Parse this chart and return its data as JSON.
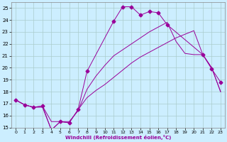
{
  "xlabel": "Windchill (Refroidissement éolien,°C)",
  "xlim": [
    -0.5,
    23.5
  ],
  "ylim": [
    15,
    25.5
  ],
  "yticks": [
    15,
    16,
    17,
    18,
    19,
    20,
    21,
    22,
    23,
    24,
    25
  ],
  "xticks": [
    0,
    1,
    2,
    3,
    4,
    5,
    6,
    7,
    8,
    9,
    10,
    11,
    12,
    13,
    14,
    15,
    16,
    17,
    18,
    19,
    20,
    21,
    22,
    23
  ],
  "background_color": "#cceeff",
  "grid_color": "#aacccc",
  "line_color": "#990099",
  "line1_x": [
    0,
    1,
    2,
    3,
    4,
    5,
    6,
    7,
    8,
    11,
    12,
    13,
    14,
    15,
    16,
    17,
    21,
    22,
    23
  ],
  "line1_y": [
    17.3,
    16.9,
    16.7,
    16.8,
    14.8,
    15.5,
    15.4,
    16.5,
    19.7,
    23.9,
    25.1,
    25.1,
    24.4,
    24.7,
    24.6,
    23.6,
    21.1,
    19.9,
    18.8
  ],
  "line2_x": [
    0,
    1,
    2,
    3,
    4,
    5,
    6,
    7,
    8,
    9,
    10,
    11,
    12,
    13,
    14,
    15,
    16,
    17,
    18,
    19,
    20,
    21,
    22,
    23
  ],
  "line2_y": [
    17.3,
    16.9,
    16.7,
    16.8,
    15.5,
    15.5,
    15.5,
    16.4,
    18.2,
    19.3,
    20.2,
    21.0,
    21.5,
    22.0,
    22.5,
    23.0,
    23.4,
    23.8,
    22.2,
    21.2,
    21.1,
    21.1,
    20.0,
    18.0
  ],
  "line3_x": [
    0,
    1,
    2,
    3,
    4,
    5,
    6,
    7,
    8,
    9,
    10,
    11,
    12,
    13,
    14,
    15,
    16,
    17,
    18,
    19,
    20,
    21,
    22,
    23
  ],
  "line3_y": [
    17.3,
    16.9,
    16.7,
    16.7,
    14.8,
    15.5,
    15.4,
    16.5,
    17.5,
    18.1,
    18.6,
    19.2,
    19.8,
    20.4,
    20.9,
    21.3,
    21.7,
    22.1,
    22.5,
    22.8,
    23.1,
    21.1,
    20.0,
    18.0
  ],
  "marker": "D",
  "markersize": 2.5
}
